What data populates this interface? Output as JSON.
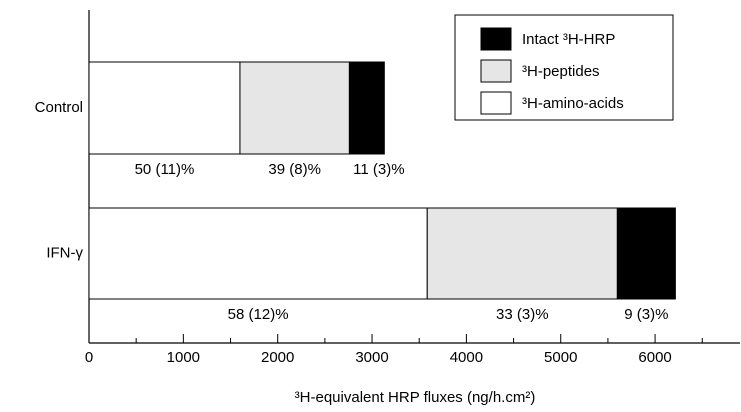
{
  "chart_data": {
    "type": "stacked-barh",
    "categories": [
      "Control",
      "IFN-γ"
    ],
    "series": [
      {
        "name": "³H-amino-acids",
        "color": "#ffffff",
        "values": [
          1600,
          3585
        ],
        "percent_labels": [
          "50 (11)%",
          "58 (12)%"
        ]
      },
      {
        "name": "³H-peptides",
        "color": "#e6e6e6",
        "values": [
          1160,
          2015
        ],
        "percent_labels": [
          "39 (8)%",
          "33 (3)%"
        ]
      },
      {
        "name": "Intact ³H-HRP",
        "color": "#000000",
        "values": [
          370,
          615
        ],
        "percent_labels": [
          "11 (3)%",
          "9 (3)%"
        ]
      }
    ],
    "x_label": "³H-equivalent HRP fluxes (ng/h.cm²)",
    "xlim": [
      0,
      6900
    ],
    "xticks": [
      0,
      1000,
      2000,
      3000,
      4000,
      5000,
      6000
    ],
    "xminorticks": [
      500,
      1500,
      2500,
      3500,
      4500,
      5500,
      6500
    ],
    "legend": "top-right"
  }
}
